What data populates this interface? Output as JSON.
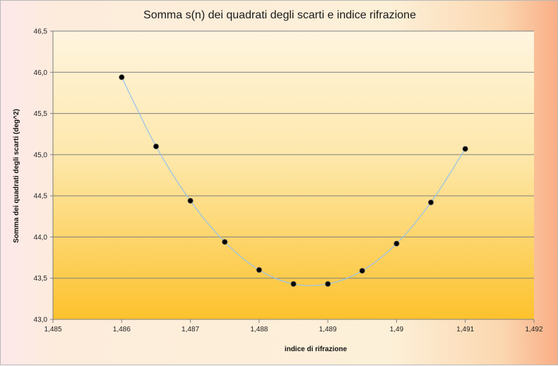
{
  "chart_data": {
    "type": "scatter",
    "title": "Somma s(n) dei quadrati degli scarti e indice rifrazione",
    "xlabel": "indice di rifrazione",
    "ylabel": "Somma dei quadrati degli scarti (deg^2)",
    "xlim": [
      1.485,
      1.492
    ],
    "ylim": [
      43.0,
      46.5
    ],
    "x_ticks": [
      "1,485",
      "1,486",
      "1,487",
      "1,488",
      "1,489",
      "1,49",
      "1,491",
      "1,492"
    ],
    "y_ticks": [
      "43,0",
      "43,5",
      "44,0",
      "44,5",
      "45,0",
      "45,5",
      "46,0",
      "46,5"
    ],
    "grid": true,
    "legend": "none",
    "series": [
      {
        "x": [
          1.486,
          1.4865,
          1.487,
          1.4875,
          1.488,
          1.4885,
          1.489,
          1.4895,
          1.49,
          1.4905,
          1.491
        ],
        "y": [
          45.94,
          45.1,
          44.44,
          43.94,
          43.6,
          43.43,
          43.43,
          43.59,
          43.92,
          44.42,
          45.07
        ]
      }
    ],
    "colors": {
      "marker": "#000000",
      "curve": "#9cc3e6",
      "grid": "#7f7f7f",
      "plot_top": "#fff5e0",
      "plot_bottom": "#fdc22c"
    }
  }
}
